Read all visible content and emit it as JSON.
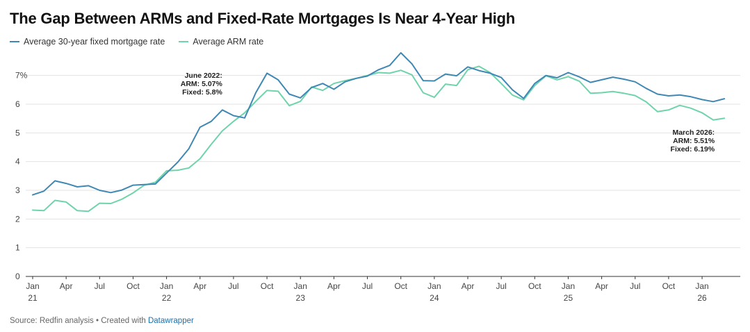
{
  "header": {
    "title": "The Gap Between ARMs and Fixed-Rate Mortgages Is Near 4-Year High"
  },
  "footer": {
    "source": "Source: Redfin analysis",
    "separator": " • Created with ",
    "tool": "Datawrapper"
  },
  "colors": {
    "fixed": "#3f88b4",
    "arm": "#6fd3ab",
    "grid": "#e3e3e3",
    "axis": "#333333"
  },
  "chart_data": {
    "type": "line",
    "title": "The Gap Between ARMs and Fixed-Rate Mortgages Is Near 4-Year High",
    "xlabel": "",
    "ylabel": "",
    "x": [
      "2021-01",
      "2021-02",
      "2021-03",
      "2021-04",
      "2021-05",
      "2021-06",
      "2021-07",
      "2021-08",
      "2021-09",
      "2021-10",
      "2021-11",
      "2021-12",
      "2022-01",
      "2022-02",
      "2022-03",
      "2022-04",
      "2022-05",
      "2022-06",
      "2022-07",
      "2022-08",
      "2022-09",
      "2022-10",
      "2022-11",
      "2022-12",
      "2023-01",
      "2023-02",
      "2023-03",
      "2023-04",
      "2023-05",
      "2023-06",
      "2023-07",
      "2023-08",
      "2023-09",
      "2023-10",
      "2023-11",
      "2023-12",
      "2024-01",
      "2024-02",
      "2024-03",
      "2024-04",
      "2024-05",
      "2024-06",
      "2024-07",
      "2024-08",
      "2024-09",
      "2024-10",
      "2024-11",
      "2024-12",
      "2025-01",
      "2025-02",
      "2025-03",
      "2025-04",
      "2025-05",
      "2025-06",
      "2025-07",
      "2025-08",
      "2025-09",
      "2025-10",
      "2025-11",
      "2025-12",
      "2026-01",
      "2026-02",
      "2026-03"
    ],
    "series": [
      {
        "name": "Average 30-year fixed mortgage rate",
        "values": [
          2.84,
          2.97,
          3.33,
          3.24,
          3.12,
          3.16,
          3.0,
          2.92,
          3.01,
          3.18,
          3.2,
          3.22,
          3.6,
          3.98,
          4.45,
          5.2,
          5.4,
          5.8,
          5.6,
          5.52,
          6.4,
          7.08,
          6.85,
          6.35,
          6.22,
          6.58,
          6.72,
          6.52,
          6.78,
          6.9,
          6.98,
          7.2,
          7.35,
          7.79,
          7.4,
          6.82,
          6.81,
          7.05,
          6.99,
          7.3,
          7.17,
          7.08,
          6.93,
          6.5,
          6.2,
          6.72,
          7.0,
          6.92,
          7.1,
          6.95,
          6.76,
          6.85,
          6.94,
          6.87,
          6.78,
          6.55,
          6.35,
          6.29,
          6.32,
          6.26,
          6.16,
          6.09,
          6.19
        ]
      },
      {
        "name": "Average ARM rate",
        "values": [
          2.31,
          2.29,
          2.65,
          2.59,
          2.29,
          2.27,
          2.55,
          2.54,
          2.69,
          2.91,
          3.18,
          3.28,
          3.68,
          3.7,
          3.78,
          4.1,
          4.6,
          5.07,
          5.4,
          5.7,
          6.1,
          6.48,
          6.45,
          5.95,
          6.1,
          6.6,
          6.48,
          6.72,
          6.82,
          6.9,
          7.0,
          7.1,
          7.08,
          7.18,
          7.02,
          6.4,
          6.24,
          6.7,
          6.65,
          7.2,
          7.32,
          7.1,
          6.72,
          6.32,
          6.15,
          6.65,
          6.99,
          6.85,
          6.96,
          6.8,
          6.38,
          6.4,
          6.44,
          6.38,
          6.3,
          6.08,
          5.74,
          5.8,
          5.96,
          5.86,
          5.7,
          5.45,
          5.51
        ]
      }
    ],
    "ylim": [
      0,
      7.5
    ],
    "yticks": [
      0,
      1,
      2,
      3,
      4,
      5,
      6,
      7
    ],
    "ytick_labels": [
      "0",
      "1",
      "2",
      "3",
      "4",
      "5",
      "6",
      "7%"
    ],
    "xticks": [
      {
        "x": "2021-01",
        "label": "Jan",
        "sub": "21"
      },
      {
        "x": "2021-04",
        "label": "Apr",
        "sub": ""
      },
      {
        "x": "2021-07",
        "label": "Jul",
        "sub": ""
      },
      {
        "x": "2021-10",
        "label": "Oct",
        "sub": ""
      },
      {
        "x": "2022-01",
        "label": "Jan",
        "sub": "22"
      },
      {
        "x": "2022-04",
        "label": "Apr",
        "sub": ""
      },
      {
        "x": "2022-07",
        "label": "Jul",
        "sub": ""
      },
      {
        "x": "2022-10",
        "label": "Oct",
        "sub": ""
      },
      {
        "x": "2023-01",
        "label": "Jan",
        "sub": "23"
      },
      {
        "x": "2023-04",
        "label": "Apr",
        "sub": ""
      },
      {
        "x": "2023-07",
        "label": "Jul",
        "sub": ""
      },
      {
        "x": "2023-10",
        "label": "Oct",
        "sub": ""
      },
      {
        "x": "2024-01",
        "label": "Jan",
        "sub": "24"
      },
      {
        "x": "2024-04",
        "label": "Apr",
        "sub": ""
      },
      {
        "x": "2024-07",
        "label": "Jul",
        "sub": ""
      },
      {
        "x": "2024-10",
        "label": "Oct",
        "sub": ""
      },
      {
        "x": "2025-01",
        "label": "Jan",
        "sub": "25"
      },
      {
        "x": "2025-04",
        "label": "Apr",
        "sub": ""
      },
      {
        "x": "2025-07",
        "label": "Jul",
        "sub": ""
      },
      {
        "x": "2025-10",
        "label": "Oct",
        "sub": ""
      },
      {
        "x": "2026-01",
        "label": "Jan",
        "sub": "26"
      }
    ],
    "grid": true,
    "legend": "top-left",
    "annotations": [
      {
        "x": "2022-06",
        "lines": [
          "June 2022:",
          "ARM: 5.07%",
          "Fixed: 5.8%"
        ]
      },
      {
        "x": "2026-03",
        "lines": [
          "March 2026:",
          "ARM: 5.51%",
          "Fixed: 6.19%"
        ]
      }
    ]
  }
}
